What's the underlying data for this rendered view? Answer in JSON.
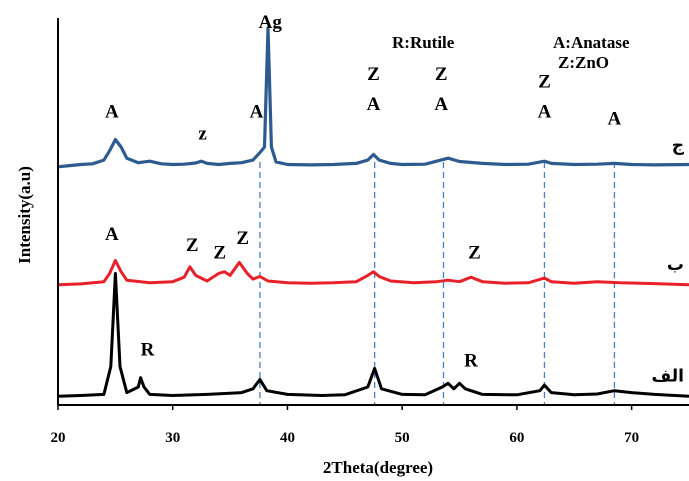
{
  "chart_data": {
    "type": "line",
    "xlabel": "2Theta(degree)",
    "ylabel": "Intensity(a.u)",
    "xlim": [
      20,
      75
    ],
    "x_ticks": [
      "20",
      "30",
      "40",
      "50",
      "60",
      "70"
    ],
    "legend": {
      "placement": "top",
      "items": [
        "R:Rutile",
        "A:Anatase",
        "Z:ZnO"
      ]
    },
    "reference_lines_x": [
      37.6,
      47.6,
      53.6,
      62.4,
      68.5
    ],
    "series": [
      {
        "name": "ج",
        "color": "#2e5b8f",
        "baseline": 0.63,
        "x": [
          20,
          21,
          22,
          23,
          24,
          24.5,
          25,
          25.5,
          26,
          27,
          28,
          29,
          30,
          31,
          32,
          32.5,
          33,
          34,
          35,
          36,
          37,
          37.6,
          38,
          38.3,
          38.6,
          39,
          40,
          42,
          44,
          46,
          47,
          47.5,
          48,
          49,
          50,
          52,
          53.5,
          54,
          55,
          57,
          59,
          61,
          62.4,
          63,
          65,
          67,
          68.5,
          70,
          72,
          75
        ],
        "y": [
          0.627,
          0.63,
          0.633,
          0.635,
          0.645,
          0.67,
          0.7,
          0.68,
          0.65,
          0.638,
          0.642,
          0.635,
          0.633,
          0.634,
          0.637,
          0.642,
          0.636,
          0.633,
          0.636,
          0.638,
          0.645,
          0.665,
          0.68,
          1.0,
          0.68,
          0.64,
          0.633,
          0.632,
          0.633,
          0.636,
          0.645,
          0.66,
          0.645,
          0.636,
          0.633,
          0.634,
          0.646,
          0.65,
          0.641,
          0.636,
          0.633,
          0.634,
          0.642,
          0.636,
          0.633,
          0.634,
          0.636,
          0.633,
          0.632,
          0.633
        ]
      },
      {
        "name": "ب",
        "color": "#e8202a",
        "baseline": 0.31,
        "x": [
          20,
          22,
          24,
          24.5,
          25,
          25.5,
          26,
          28,
          30,
          31,
          31.5,
          32,
          33,
          34,
          34.5,
          35,
          35.8,
          36.5,
          37,
          37.6,
          38.3,
          40,
          42,
          44,
          46,
          47,
          47.5,
          48,
          49,
          51,
          53,
          54,
          55,
          56,
          57,
          59,
          61,
          62.4,
          63,
          65,
          67,
          69,
          72,
          75
        ],
        "y": [
          0.31,
          0.312,
          0.318,
          0.34,
          0.375,
          0.345,
          0.322,
          0.315,
          0.318,
          0.33,
          0.358,
          0.335,
          0.32,
          0.34,
          0.345,
          0.335,
          0.37,
          0.34,
          0.325,
          0.332,
          0.32,
          0.315,
          0.314,
          0.315,
          0.318,
          0.335,
          0.345,
          0.332,
          0.32,
          0.315,
          0.318,
          0.322,
          0.318,
          0.33,
          0.318,
          0.314,
          0.315,
          0.328,
          0.318,
          0.314,
          0.318,
          0.315,
          0.313,
          0.31
        ]
      },
      {
        "name": "الف",
        "color": "#000000",
        "baseline": 0.01,
        "x": [
          20,
          22,
          24,
          24.6,
          25,
          25.4,
          26,
          27,
          27.2,
          27.5,
          28,
          30,
          33,
          35,
          36,
          37,
          37.6,
          38.2,
          40,
          43,
          45,
          47,
          47.6,
          48.2,
          50,
          52,
          53.5,
          54,
          54.5,
          55,
          55.5,
          57,
          60,
          62,
          62.4,
          63,
          65,
          67,
          68.5,
          70,
          72,
          75
        ],
        "y": [
          0.01,
          0.012,
          0.015,
          0.09,
          0.34,
          0.09,
          0.02,
          0.035,
          0.06,
          0.035,
          0.015,
          0.012,
          0.015,
          0.018,
          0.02,
          0.03,
          0.055,
          0.025,
          0.015,
          0.012,
          0.014,
          0.035,
          0.085,
          0.03,
          0.015,
          0.014,
          0.035,
          0.045,
          0.03,
          0.045,
          0.03,
          0.015,
          0.014,
          0.025,
          0.04,
          0.02,
          0.014,
          0.016,
          0.025,
          0.02,
          0.015,
          0.01
        ]
      }
    ],
    "annotations": [
      {
        "text": "Ag",
        "x": 38.5,
        "y": 1.0
      },
      {
        "text": "A",
        "x": 24.7,
        "y": 0.76
      },
      {
        "text": "z",
        "x": 32.6,
        "y": 0.7
      },
      {
        "text": "A",
        "x": 37.3,
        "y": 0.76
      },
      {
        "text": "Z",
        "x": 47.5,
        "y": 0.86
      },
      {
        "text": "A",
        "x": 47.5,
        "y": 0.78
      },
      {
        "text": "Z",
        "x": 53.4,
        "y": 0.86
      },
      {
        "text": "A",
        "x": 53.4,
        "y": 0.78
      },
      {
        "text": "Z",
        "x": 62.4,
        "y": 0.84
      },
      {
        "text": "A",
        "x": 62.4,
        "y": 0.76
      },
      {
        "text": "A",
        "x": 68.5,
        "y": 0.74
      },
      {
        "text": "A",
        "x": 24.7,
        "y": 0.43
      },
      {
        "text": "Z",
        "x": 31.7,
        "y": 0.4
      },
      {
        "text": "Z",
        "x": 34.1,
        "y": 0.38
      },
      {
        "text": "Z",
        "x": 36.1,
        "y": 0.42
      },
      {
        "text": "Z",
        "x": 56.3,
        "y": 0.38
      },
      {
        "text": "R",
        "x": 27.8,
        "y": 0.12
      },
      {
        "text": "R",
        "x": 56.0,
        "y": 0.09
      }
    ]
  }
}
